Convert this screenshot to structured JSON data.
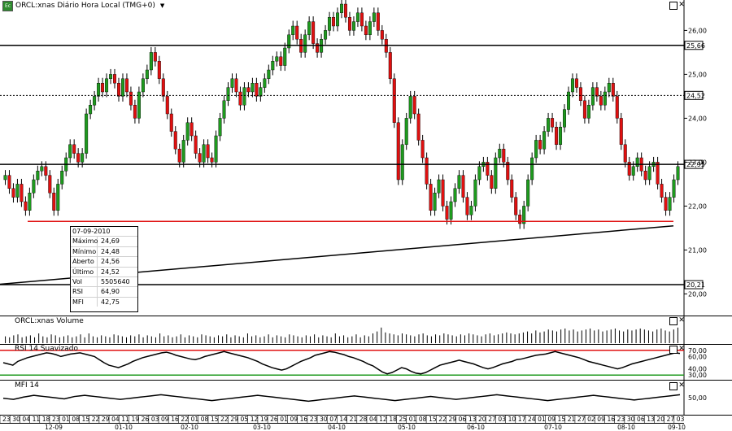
{
  "window": {
    "app_icon": "chart-app-icon",
    "title": "ORCL:xnas Diário Hora Local (TMG+0)",
    "menu_icon": "dropdown-arrow-icon"
  },
  "volume_title": "ORCL:xnas Volume",
  "rsi_title": "RSI 14 Suavizado",
  "mfi_title": "MFI 14",
  "info": {
    "date": "07-09-2010",
    "rows": [
      {
        "k": "Máximo",
        "v": "24,69"
      },
      {
        "k": "Mínimo",
        "v": "24,48"
      },
      {
        "k": "Aberto",
        "v": "24,56"
      },
      {
        "k": "Último",
        "v": "24,52"
      },
      {
        "k": "Vol",
        "v": "5505640"
      },
      {
        "k": "RSI",
        "v": "64,90"
      },
      {
        "k": "MFI",
        "v": "42,75"
      }
    ]
  },
  "chart_data": {
    "type": "candlestick",
    "colors": {
      "up": "#1e9a1e",
      "down": "#e01010",
      "support": "#e01010",
      "resistance": "#000000",
      "rsi_upper": "#e01010",
      "rsi_lower": "#1e9a1e"
    },
    "price_axis": {
      "ticks": [
        "26,00",
        "25,00",
        "24,00",
        "23,00",
        "22,00",
        "21,00",
        "20,00"
      ],
      "range": [
        19.6,
        26.6
      ]
    },
    "price_values": [
      26.0,
      25.0,
      24.0,
      23.0,
      22.0,
      21.0,
      20.0
    ],
    "horizontal_levels": [
      {
        "value": 25.66,
        "label": "25,66",
        "style": "solid"
      },
      {
        "value": 24.52,
        "label": "24,52",
        "style": "dotted"
      },
      {
        "value": 22.95,
        "label": "22,95",
        "style": "solid"
      },
      {
        "value": 20.21,
        "label": "20,21",
        "style": "solid"
      }
    ],
    "support_level": 21.65,
    "trendline": {
      "from_price": 20.22,
      "to_price": 21.55
    },
    "closes": [
      22.7,
      22.4,
      22.2,
      22.5,
      22.1,
      21.9,
      22.3,
      22.6,
      22.8,
      22.9,
      22.7,
      22.3,
      21.9,
      22.5,
      22.8,
      23.1,
      23.4,
      23.2,
      23.0,
      23.2,
      24.1,
      24.3,
      24.5,
      24.8,
      24.6,
      24.9,
      25.0,
      24.8,
      24.5,
      24.9,
      24.6,
      24.3,
      24.0,
      24.6,
      24.9,
      25.1,
      25.5,
      25.3,
      24.9,
      24.5,
      24.1,
      23.7,
      23.3,
      23.0,
      23.5,
      23.9,
      23.6,
      23.2,
      23.0,
      23.4,
      23.1,
      23.0,
      23.6,
      24.0,
      24.4,
      24.7,
      24.9,
      24.6,
      24.3,
      24.7,
      24.6,
      24.8,
      24.5,
      24.7,
      24.9,
      25.1,
      25.3,
      25.4,
      25.2,
      25.6,
      25.9,
      26.1,
      25.8,
      25.5,
      25.9,
      26.2,
      25.7,
      25.5,
      25.8,
      26.0,
      26.3,
      26.1,
      26.4,
      26.6,
      26.3,
      26.0,
      26.2,
      26.4,
      26.1,
      25.9,
      26.2,
      26.4,
      26.0,
      25.8,
      25.5,
      24.9,
      23.9,
      22.6,
      23.4,
      24.0,
      24.5,
      24.1,
      23.5,
      23.1,
      22.5,
      21.9,
      22.3,
      22.6,
      22.0,
      21.7,
      22.1,
      22.4,
      22.7,
      22.2,
      21.8,
      22.0,
      22.6,
      22.9,
      23.0,
      22.7,
      22.4,
      23.1,
      23.3,
      23.0,
      22.6,
      22.2,
      21.8,
      21.6,
      22.0,
      22.6,
      23.1,
      23.5,
      23.3,
      23.7,
      24.0,
      23.8,
      23.4,
      23.8,
      24.2,
      24.6,
      24.9,
      24.7,
      24.4,
      24.0,
      24.3,
      24.7,
      24.5,
      24.3,
      24.6,
      24.8,
      24.5,
      24.0,
      23.4,
      23.0,
      22.7,
      22.9,
      23.1,
      22.8,
      22.6,
      22.9,
      23.0,
      22.5,
      22.2,
      21.9,
      22.2,
      22.6,
      22.9
    ],
    "volume": [
      0.35,
      0.3,
      0.4,
      0.45,
      0.3,
      0.35,
      0.4,
      0.3,
      0.5,
      0.35,
      0.3,
      0.45,
      0.4,
      0.3,
      0.35,
      0.4,
      0.3,
      0.35,
      0.45,
      0.3,
      0.5,
      0.35,
      0.3,
      0.4,
      0.35,
      0.3,
      0.45,
      0.4,
      0.35,
      0.3,
      0.4,
      0.35,
      0.45,
      0.3,
      0.4,
      0.35,
      0.3,
      0.5,
      0.35,
      0.4,
      0.3,
      0.35,
      0.45,
      0.3,
      0.4,
      0.35,
      0.3,
      0.45,
      0.4,
      0.35,
      0.3,
      0.4,
      0.35,
      0.45,
      0.3,
      0.4,
      0.35,
      0.3,
      0.5,
      0.35,
      0.4,
      0.3,
      0.35,
      0.45,
      0.3,
      0.4,
      0.35,
      0.3,
      0.45,
      0.4,
      0.35,
      0.3,
      0.4,
      0.35,
      0.45,
      0.3,
      0.4,
      0.35,
      0.3,
      0.5,
      0.35,
      0.4,
      0.3,
      0.35,
      0.45,
      0.3,
      0.4,
      0.35,
      0.5,
      0.6,
      0.8,
      0.55,
      0.5,
      0.45,
      0.4,
      0.5,
      0.45,
      0.4,
      0.35,
      0.45,
      0.5,
      0.4,
      0.35,
      0.45,
      0.4,
      0.5,
      0.45,
      0.4,
      0.35,
      0.45,
      0.4,
      0.5,
      0.45,
      0.4,
      0.35,
      0.45,
      0.5,
      0.4,
      0.45,
      0.5,
      0.55,
      0.5,
      0.45,
      0.5,
      0.55,
      0.6,
      0.5,
      0.65,
      0.55,
      0.6,
      0.7,
      0.65,
      0.6,
      0.7,
      0.75,
      0.65,
      0.7,
      0.6,
      0.65,
      0.7,
      0.75,
      0.65,
      0.7,
      0.6,
      0.65,
      0.7,
      0.75,
      0.65,
      0.6,
      0.7,
      0.65,
      0.7,
      0.75,
      0.7,
      0.65,
      0.6,
      0.7,
      0.75,
      0.65,
      0.6,
      0.7,
      0.8
    ],
    "rsi": {
      "ticks": [
        "70,00",
        "60,00",
        "40,00",
        "30,00"
      ],
      "upper": 70,
      "lower": 30,
      "range": [
        25,
        75
      ],
      "values": [
        50,
        48,
        46,
        52,
        55,
        58,
        60,
        62,
        64,
        66,
        65,
        63,
        60,
        62,
        64,
        65,
        66,
        64,
        62,
        60,
        55,
        50,
        46,
        44,
        42,
        45,
        48,
        52,
        55,
        58,
        60,
        62,
        64,
        66,
        67,
        65,
        62,
        60,
        58,
        56,
        55,
        57,
        60,
        62,
        64,
        66,
        68,
        66,
        64,
        62,
        60,
        58,
        55,
        52,
        48,
        45,
        42,
        40,
        38,
        40,
        44,
        48,
        52,
        55,
        58,
        62,
        64,
        66,
        68,
        67,
        65,
        63,
        60,
        58,
        55,
        52,
        48,
        45,
        40,
        35,
        32,
        34,
        38,
        42,
        40,
        36,
        33,
        32,
        34,
        38,
        42,
        46,
        48,
        50,
        52,
        54,
        52,
        50,
        48,
        45,
        42,
        40,
        42,
        45,
        48,
        50,
        52,
        55,
        56,
        58,
        60,
        62,
        63,
        64,
        66,
        68,
        66,
        64,
        62,
        60,
        58,
        55,
        52,
        50,
        48,
        46,
        44,
        42,
        40,
        42,
        45,
        48,
        50,
        52,
        54,
        56,
        58,
        60,
        62,
        64,
        66,
        65
      ]
    },
    "mfi": {
      "ticks": [
        "50,00"
      ],
      "range": [
        0,
        100
      ],
      "values": [
        48,
        46,
        44,
        48,
        52,
        55,
        58,
        56,
        54,
        52,
        50,
        48,
        46,
        50,
        54,
        56,
        58,
        56,
        54,
        52,
        50,
        48,
        46,
        44,
        46,
        48,
        50,
        52,
        54,
        56,
        58,
        60,
        58,
        56,
        54,
        52,
        50,
        48,
        46,
        44,
        42,
        40,
        42,
        44,
        46,
        48,
        50,
        52,
        54,
        56,
        58,
        56,
        54,
        52,
        50,
        48,
        46,
        44,
        42,
        40,
        38,
        40,
        42,
        44,
        46,
        48,
        50,
        52,
        54,
        56,
        54,
        52,
        50,
        48,
        46,
        44,
        42,
        40,
        42,
        44,
        46,
        48,
        50,
        52,
        54,
        52,
        50,
        48,
        46,
        44,
        46,
        48,
        50,
        52,
        54,
        56,
        58,
        60,
        58,
        56,
        54,
        52,
        50,
        48,
        46,
        44,
        42,
        40,
        42,
        44,
        46,
        48,
        50,
        52,
        54,
        56,
        58,
        56,
        54,
        52,
        50,
        48,
        46,
        44,
        42,
        44,
        46,
        48,
        50,
        52,
        54,
        56,
        58,
        60
      ]
    },
    "x_day_labels": [
      "23",
      "30",
      "04",
      "11",
      "18",
      "23",
      "01",
      "08",
      "15",
      "22",
      "29",
      "04",
      "11",
      "19",
      "26",
      "03",
      "09",
      "16",
      "22",
      "01",
      "08",
      "15",
      "22",
      "29",
      "05",
      "12",
      "19",
      "26",
      "01",
      "09",
      "16",
      "23",
      "30",
      "07",
      "14",
      "21",
      "28",
      "04",
      "12",
      "18",
      "25",
      "01",
      "08",
      "15",
      "22",
      "29",
      "06",
      "13",
      "20",
      "27",
      "03",
      "10",
      "17",
      "24",
      "01",
      "09",
      "15",
      "21",
      "27",
      "02",
      "09",
      "16",
      "23",
      "30",
      "06",
      "13",
      "20",
      "27",
      "03"
    ],
    "x_month_labels": [
      "12-09",
      "01-10",
      "02-10",
      "03-10",
      "04-10",
      "05-10",
      "06-10",
      "07-10",
      "08-10",
      "09-10"
    ]
  }
}
